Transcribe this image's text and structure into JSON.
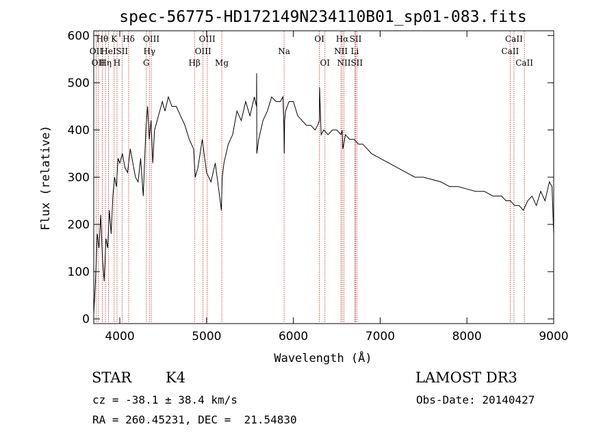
{
  "chart_data": {
    "type": "line",
    "title": "spec-56775-HD172149N234110B01_sp01-083.fits",
    "xlabel": "Wavelength (Å)",
    "ylabel": "Flux (relative)",
    "xlim": [
      3700,
      9000
    ],
    "ylim": [
      -10,
      610
    ],
    "xticks": [
      4000,
      5000,
      6000,
      7000,
      8000,
      9000
    ],
    "yticks": [
      0,
      100,
      200,
      300,
      400,
      500,
      600
    ],
    "line_color": "#000000",
    "marker_color": "#b22222",
    "series": [
      {
        "name": "flux",
        "x": [
          3700,
          3720,
          3740,
          3760,
          3780,
          3800,
          3820,
          3840,
          3860,
          3880,
          3900,
          3920,
          3940,
          3960,
          3980,
          4000,
          4030,
          4060,
          4090,
          4120,
          4150,
          4180,
          4210,
          4240,
          4270,
          4300,
          4320,
          4340,
          4360,
          4380,
          4400,
          4430,
          4460,
          4490,
          4520,
          4560,
          4600,
          4650,
          4700,
          4750,
          4800,
          4850,
          4870,
          4900,
          4950,
          5000,
          5050,
          5100,
          5150,
          5170,
          5180,
          5200,
          5250,
          5300,
          5350,
          5400,
          5450,
          5500,
          5550,
          5575,
          5577,
          5579,
          5600,
          5650,
          5700,
          5750,
          5800,
          5850,
          5880,
          5890,
          5895,
          5900,
          5910,
          5950,
          6000,
          6050,
          6100,
          6150,
          6200,
          6250,
          6280,
          6300,
          6302,
          6320,
          6350,
          6400,
          6450,
          6500,
          6550,
          6563,
          6570,
          6600,
          6650,
          6700,
          6750,
          6800,
          6900,
          7000,
          7100,
          7200,
          7300,
          7400,
          7500,
          7600,
          7700,
          7800,
          7900,
          8000,
          8100,
          8200,
          8300,
          8400,
          8450,
          8500,
          8550,
          8600,
          8650,
          8700,
          8750,
          8800,
          8850,
          8900,
          8950,
          8980,
          9000
        ],
        "y": [
          10,
          80,
          180,
          150,
          220,
          130,
          80,
          170,
          150,
          230,
          180,
          260,
          300,
          280,
          340,
          330,
          350,
          320,
          310,
          360,
          330,
          300,
          290,
          340,
          260,
          400,
          450,
          380,
          420,
          330,
          400,
          420,
          440,
          460,
          440,
          470,
          450,
          450,
          430,
          410,
          380,
          360,
          300,
          320,
          380,
          310,
          290,
          330,
          260,
          230,
          300,
          330,
          370,
          390,
          440,
          420,
          460,
          430,
          470,
          450,
          520,
          350,
          380,
          420,
          440,
          470,
          460,
          460,
          470,
          410,
          350,
          420,
          440,
          460,
          460,
          430,
          420,
          410,
          410,
          400,
          410,
          420,
          490,
          390,
          400,
          390,
          400,
          400,
          390,
          400,
          360,
          390,
          380,
          380,
          370,
          370,
          350,
          340,
          330,
          320,
          310,
          300,
          300,
          295,
          290,
          280,
          280,
          275,
          270,
          270,
          260,
          260,
          250,
          250,
          240,
          240,
          230,
          250,
          260,
          240,
          270,
          250,
          290,
          280,
          180
        ]
      }
    ],
    "line_markers": [
      {
        "wavelength": 3727,
        "label": "OII",
        "row": 2
      },
      {
        "wavelength": 3750,
        "label": "OII",
        "row": 3
      },
      {
        "wavelength": 3798,
        "label": "Hθ",
        "row": 1
      },
      {
        "wavelength": 3835,
        "label": "Hη",
        "row": 3
      },
      {
        "wavelength": 3870,
        "label": "HeI",
        "row": 2
      },
      {
        "wavelength": 3934,
        "label": "K",
        "row": 1
      },
      {
        "wavelength": 3968,
        "label": "H",
        "row": 3
      },
      {
        "wavelength": 4026,
        "label": "SII",
        "row": 2
      },
      {
        "wavelength": 4102,
        "label": "Hδ",
        "row": 1
      },
      {
        "wavelength": 4306,
        "label": "G",
        "row": 3
      },
      {
        "wavelength": 4341,
        "label": "Hγ",
        "row": 2
      },
      {
        "wavelength": 4363,
        "label": "OIII",
        "row": 1
      },
      {
        "wavelength": 4861,
        "label": "Hβ",
        "row": 3
      },
      {
        "wavelength": 4959,
        "label": "OIII",
        "row": 2
      },
      {
        "wavelength": 5007,
        "label": "OIII",
        "row": 1
      },
      {
        "wavelength": 5175,
        "label": "Mg",
        "row": 3
      },
      {
        "wavelength": 5893,
        "label": "Na",
        "row": 2
      },
      {
        "wavelength": 6300,
        "label": "OI",
        "row": 1
      },
      {
        "wavelength": 6364,
        "label": "OI",
        "row": 3
      },
      {
        "wavelength": 6548,
        "label": "NII",
        "row": 2
      },
      {
        "wavelength": 6563,
        "label": "Hα",
        "row": 1
      },
      {
        "wavelength": 6583,
        "label": "NII",
        "row": 3
      },
      {
        "wavelength": 6708,
        "label": "Li",
        "row": 2
      },
      {
        "wavelength": 6717,
        "label": "SII",
        "row": 1
      },
      {
        "wavelength": 6731,
        "label": "SII",
        "row": 3
      },
      {
        "wavelength": 8498,
        "label": "CaII",
        "row": 2
      },
      {
        "wavelength": 8542,
        "label": "CaII",
        "row": 1
      },
      {
        "wavelength": 8662,
        "label": "CaII",
        "row": 3
      }
    ]
  },
  "info": {
    "object_class": "STAR",
    "subclass": "K4",
    "survey": "LAMOST DR3",
    "redshift_line": "cz = -38.1 ± 38.4 km/s",
    "obs_date_line": "Obs-Date: 20140427",
    "coords_line": "RA = 260.45231, DEC =  21.54830"
  }
}
